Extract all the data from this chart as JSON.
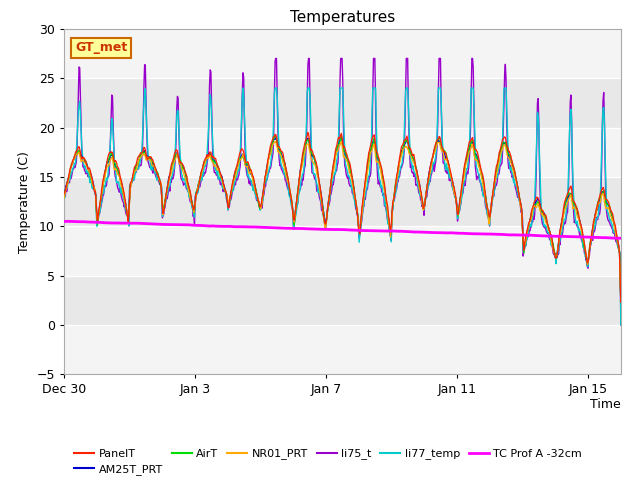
{
  "title": "Temperatures",
  "xlabel": "Time",
  "ylabel": "Temperature (C)",
  "ylim": [
    -5,
    30
  ],
  "yticks": [
    -5,
    0,
    5,
    10,
    15,
    20,
    25,
    30
  ],
  "fig_facecolor": "#ffffff",
  "plot_facecolor": "#e8e8e8",
  "series": {
    "PanelT": {
      "color": "#ff2200",
      "lw": 0.9,
      "zorder": 5
    },
    "AM25T_PRT": {
      "color": "#0000cc",
      "lw": 0.9,
      "zorder": 5
    },
    "AirT": {
      "color": "#00dd00",
      "lw": 0.9,
      "zorder": 5
    },
    "NR01_PRT": {
      "color": "#ffaa00",
      "lw": 0.9,
      "zorder": 5
    },
    "li75_t": {
      "color": "#9900cc",
      "lw": 1.0,
      "zorder": 4
    },
    "li77_temp": {
      "color": "#00cccc",
      "lw": 1.0,
      "zorder": 4
    },
    "TC Prof A -32cm": {
      "color": "#ff00ff",
      "lw": 2.0,
      "zorder": 6
    }
  },
  "annotation_box": {
    "text": "GT_met",
    "facecolor": "#ffff99",
    "edgecolor": "#cc6600",
    "textcolor": "#cc3300",
    "fontsize": 9,
    "fontweight": "bold"
  },
  "xticklabels": [
    "Dec 30",
    "Jan 3",
    "Jan 7",
    "Jan 11",
    "Jan 15"
  ],
  "xtick_days": [
    0,
    4,
    8,
    12,
    16
  ],
  "num_days": 17
}
